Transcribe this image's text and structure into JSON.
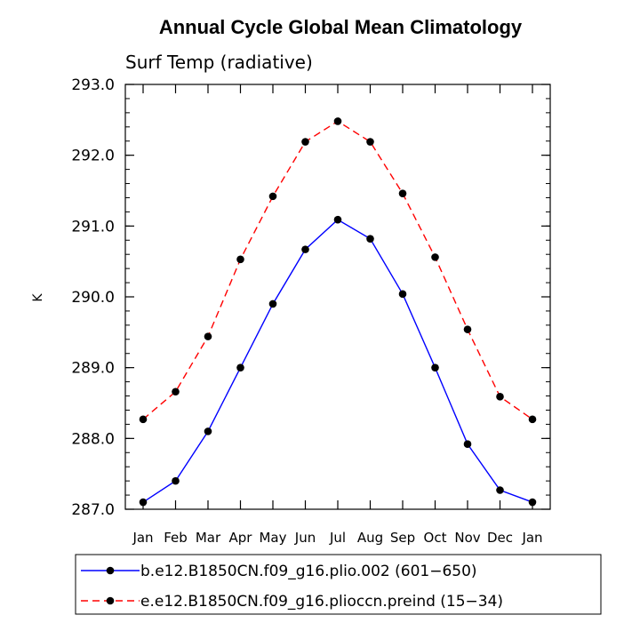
{
  "chart_data": {
    "type": "line",
    "title": "Annual Cycle Global Mean Climatology",
    "subtitle": "Surf Temp (radiative)",
    "ylabel": "K",
    "xlabel": "",
    "ylim": [
      287.0,
      293.0
    ],
    "yticks": [
      "287.0",
      "288.0",
      "289.0",
      "290.0",
      "291.0",
      "292.0",
      "293.0"
    ],
    "categories": [
      "Jan",
      "Feb",
      "Mar",
      "Apr",
      "May",
      "Jun",
      "Jul",
      "Aug",
      "Sep",
      "Oct",
      "Nov",
      "Dec",
      "Jan"
    ],
    "grid": false,
    "legend_position": "bottom",
    "series": [
      {
        "name": "b.e12.B1850CN.f09_g16.plio.002 (601−650)",
        "color": "#0000ff",
        "dash": "solid",
        "values": [
          287.1,
          287.4,
          288.1,
          289.0,
          289.9,
          290.67,
          291.09,
          290.82,
          290.04,
          289.0,
          287.92,
          287.27,
          287.1
        ]
      },
      {
        "name": "e.e12.B1850CN.f09_g16.plioccn.preind (15−34)",
        "color": "#ff0000",
        "dash": "dashed",
        "values": [
          288.27,
          288.66,
          289.44,
          290.53,
          291.42,
          292.19,
          292.48,
          292.19,
          291.46,
          290.56,
          289.54,
          288.59,
          288.27
        ]
      }
    ]
  }
}
